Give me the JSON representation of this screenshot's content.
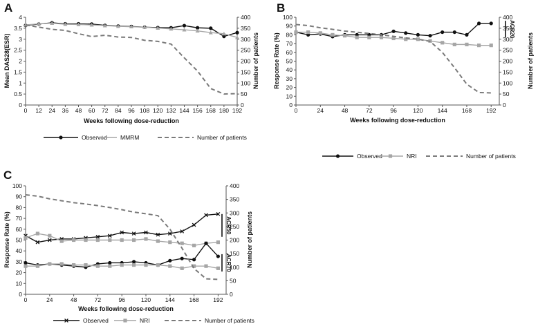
{
  "figure": {
    "panels": [
      "A",
      "B",
      "C"
    ]
  },
  "chart_data": [
    {
      "panel": "A",
      "type": "line",
      "xlabel": "Weeks following dose-reduction",
      "ylabel": "Mean DAS28(ESR)",
      "ylabel_right": "Number of patients",
      "xticks": [
        0,
        12,
        24,
        36,
        48,
        60,
        72,
        84,
        96,
        108,
        120,
        132,
        144,
        156,
        168,
        180,
        192
      ],
      "ylim": [
        0,
        4
      ],
      "yticks": [
        0,
        0.5,
        1,
        1.5,
        2,
        2.5,
        3,
        3.5,
        4
      ],
      "ylim_right": [
        0,
        400
      ],
      "yticks_right": [
        0,
        50,
        100,
        150,
        200,
        250,
        300,
        350,
        400
      ],
      "series": [
        {
          "name": "Observed",
          "axis": "left",
          "color": "#111111",
          "marker": "circle",
          "dash": "none",
          "x": [
            0,
            12,
            24,
            36,
            48,
            60,
            72,
            84,
            96,
            108,
            120,
            132,
            144,
            156,
            168,
            180,
            192
          ],
          "y": [
            3.63,
            3.69,
            3.75,
            3.7,
            3.7,
            3.69,
            3.63,
            3.6,
            3.58,
            3.55,
            3.53,
            3.52,
            3.62,
            3.52,
            3.5,
            3.13,
            3.3
          ]
        },
        {
          "name": "MMRM",
          "axis": "left",
          "color": "#a6a6a6",
          "marker": "triangle",
          "dash": "none",
          "x": [
            0,
            12,
            24,
            36,
            48,
            60,
            72,
            84,
            96,
            108,
            120,
            132,
            144,
            156,
            168,
            180,
            192
          ],
          "y": [
            3.65,
            3.7,
            3.73,
            3.68,
            3.67,
            3.65,
            3.62,
            3.59,
            3.57,
            3.55,
            3.51,
            3.47,
            3.43,
            3.38,
            3.3,
            3.25,
            3.08
          ]
        },
        {
          "name": "Number of patients",
          "axis": "right",
          "color": "#7a7a7a",
          "marker": "none",
          "dash": "dashed",
          "x": [
            0,
            12,
            24,
            36,
            48,
            60,
            72,
            84,
            96,
            108,
            120,
            132,
            144,
            156,
            168,
            180,
            192
          ],
          "y": [
            365,
            355,
            345,
            340,
            325,
            312,
            318,
            310,
            308,
            295,
            290,
            278,
            215,
            155,
            75,
            50,
            52
          ]
        }
      ]
    },
    {
      "panel": "B",
      "type": "line",
      "xlabel": "Weeks following dose-reduction",
      "ylabel": "Response Rate (%)",
      "ylabel_right": "Number of patients",
      "xticks": [
        0,
        24,
        48,
        72,
        96,
        120,
        144,
        168,
        192
      ],
      "ylim": [
        0,
        100
      ],
      "yticks": [
        0,
        10,
        20,
        30,
        40,
        50,
        60,
        70,
        80,
        90,
        100
      ],
      "ylim_right": [
        0,
        400
      ],
      "yticks_right": [
        0,
        50,
        100,
        150,
        200,
        250,
        300,
        350,
        400
      ],
      "annotations": [
        {
          "text": "ACR20",
          "y_range": [
            77,
            96
          ]
        }
      ],
      "series": [
        {
          "name": "Observed",
          "axis": "left",
          "color": "#111111",
          "marker": "circle",
          "dash": "none",
          "x": [
            0,
            12,
            24,
            36,
            48,
            60,
            72,
            84,
            96,
            108,
            120,
            132,
            144,
            156,
            168,
            180,
            192
          ],
          "y": [
            83,
            80,
            81,
            78,
            80,
            80,
            80,
            80,
            84,
            82,
            80,
            79,
            83,
            83,
            80,
            93,
            93
          ]
        },
        {
          "name": "NRI",
          "axis": "left",
          "color": "#a6a6a6",
          "marker": "square",
          "dash": "none",
          "x": [
            0,
            12,
            24,
            36,
            48,
            60,
            72,
            84,
            96,
            108,
            120,
            132,
            144,
            156,
            168,
            180,
            192
          ],
          "y": [
            83,
            83,
            82,
            80,
            79,
            77,
            77,
            77,
            76,
            75,
            75,
            73,
            71,
            69,
            69,
            68,
            68
          ]
        },
        {
          "name": "Number of patients",
          "axis": "right",
          "color": "#7a7a7a",
          "marker": "none",
          "dash": "dashed",
          "x": [
            0,
            12,
            24,
            36,
            48,
            60,
            72,
            84,
            96,
            108,
            120,
            132,
            144,
            156,
            168,
            180,
            192
          ],
          "y": [
            367,
            362,
            352,
            345,
            337,
            332,
            326,
            320,
            313,
            306,
            300,
            290,
            240,
            170,
            95,
            57,
            55
          ]
        }
      ]
    },
    {
      "panel": "C",
      "type": "line",
      "xlabel": "Weeks following dose-reduction",
      "ylabel": "Response Rate (%)",
      "ylabel_right": "Number of patients",
      "xticks": [
        0,
        24,
        48,
        72,
        96,
        120,
        144,
        168,
        192
      ],
      "ylim": [
        0,
        100
      ],
      "yticks": [
        0,
        10,
        20,
        30,
        40,
        50,
        60,
        70,
        80,
        90,
        100
      ],
      "ylim_right": [
        0,
        400
      ],
      "yticks_right": [
        0,
        50,
        100,
        150,
        200,
        250,
        300,
        350,
        400
      ],
      "annotations": [
        {
          "text": "ACR50",
          "y_range": [
            53,
            74
          ]
        },
        {
          "text": "ACR70",
          "y_range": [
            21,
            37
          ]
        }
      ],
      "series": [
        {
          "name": "Observed",
          "group": "ACR50",
          "axis": "left",
          "color": "#111111",
          "marker": "x",
          "dash": "none",
          "x": [
            0,
            12,
            24,
            36,
            48,
            60,
            72,
            84,
            96,
            108,
            120,
            132,
            144,
            156,
            168,
            180,
            192
          ],
          "y": [
            54,
            48,
            50,
            51,
            51,
            52,
            53,
            54,
            57,
            56,
            57,
            55,
            56,
            58,
            64,
            73,
            74
          ]
        },
        {
          "name": "NRI",
          "group": "ACR50",
          "axis": "left",
          "color": "#a6a6a6",
          "marker": "square",
          "dash": "none",
          "x": [
            0,
            12,
            24,
            36,
            48,
            60,
            72,
            84,
            96,
            108,
            120,
            132,
            144,
            156,
            168,
            180,
            192
          ],
          "y": [
            52,
            56,
            54,
            49,
            50,
            50,
            50,
            50,
            50,
            50,
            51,
            49,
            48,
            47,
            45,
            47,
            48
          ]
        },
        {
          "name": "Observed",
          "group": "ACR70",
          "axis": "left",
          "color": "#111111",
          "marker": "circle",
          "dash": "none",
          "x": [
            0,
            12,
            24,
            36,
            48,
            60,
            72,
            84,
            96,
            108,
            120,
            132,
            144,
            156,
            168,
            180,
            192
          ],
          "y": [
            29,
            27,
            28,
            27,
            26,
            25,
            28,
            29,
            29,
            30,
            29,
            27,
            31,
            33,
            32,
            47,
            35
          ]
        },
        {
          "name": "NRI",
          "group": "ACR70",
          "axis": "left",
          "color": "#a6a6a6",
          "marker": "square",
          "dash": "none",
          "x": [
            0,
            12,
            24,
            36,
            48,
            60,
            72,
            84,
            96,
            108,
            120,
            132,
            144,
            156,
            168,
            180,
            192
          ],
          "y": [
            26,
            26,
            28,
            28,
            27,
            27,
            26,
            26,
            27,
            27,
            27,
            27,
            26,
            24,
            26,
            26,
            24
          ]
        },
        {
          "name": "Number of patients",
          "axis": "right",
          "color": "#7a7a7a",
          "marker": "none",
          "dash": "dashed",
          "x": [
            0,
            12,
            24,
            36,
            48,
            60,
            72,
            84,
            96,
            108,
            120,
            132,
            144,
            156,
            168,
            180,
            192
          ],
          "y": [
            367,
            362,
            352,
            345,
            338,
            333,
            327,
            320,
            312,
            303,
            297,
            290,
            240,
            170,
            95,
            57,
            55
          ]
        }
      ]
    }
  ],
  "legends": [
    {
      "panel": "A",
      "items": [
        {
          "label": "Observed",
          "color": "#111111",
          "marker": "circle",
          "dash": "none"
        },
        {
          "label": "MMRM",
          "color": "#a6a6a6",
          "marker": "triangle",
          "dash": "none"
        },
        {
          "label": "Number of patients",
          "color": "#7a7a7a",
          "marker": "none",
          "dash": "dashed"
        }
      ]
    },
    {
      "panel": "B",
      "items": [
        {
          "label": "Observed",
          "color": "#111111",
          "marker": "circle",
          "dash": "none"
        },
        {
          "label": "NRI",
          "color": "#a6a6a6",
          "marker": "square",
          "dash": "none"
        },
        {
          "label": "Number of patients",
          "color": "#7a7a7a",
          "marker": "none",
          "dash": "dashed"
        }
      ]
    },
    {
      "panel": "C",
      "items": [
        {
          "label": "Observed",
          "color": "#111111",
          "marker": "x",
          "dash": "none"
        },
        {
          "label": "NRI",
          "color": "#a6a6a6",
          "marker": "square",
          "dash": "none"
        },
        {
          "label": "Number of patients",
          "color": "#7a7a7a",
          "marker": "none",
          "dash": "dashed"
        }
      ]
    }
  ]
}
